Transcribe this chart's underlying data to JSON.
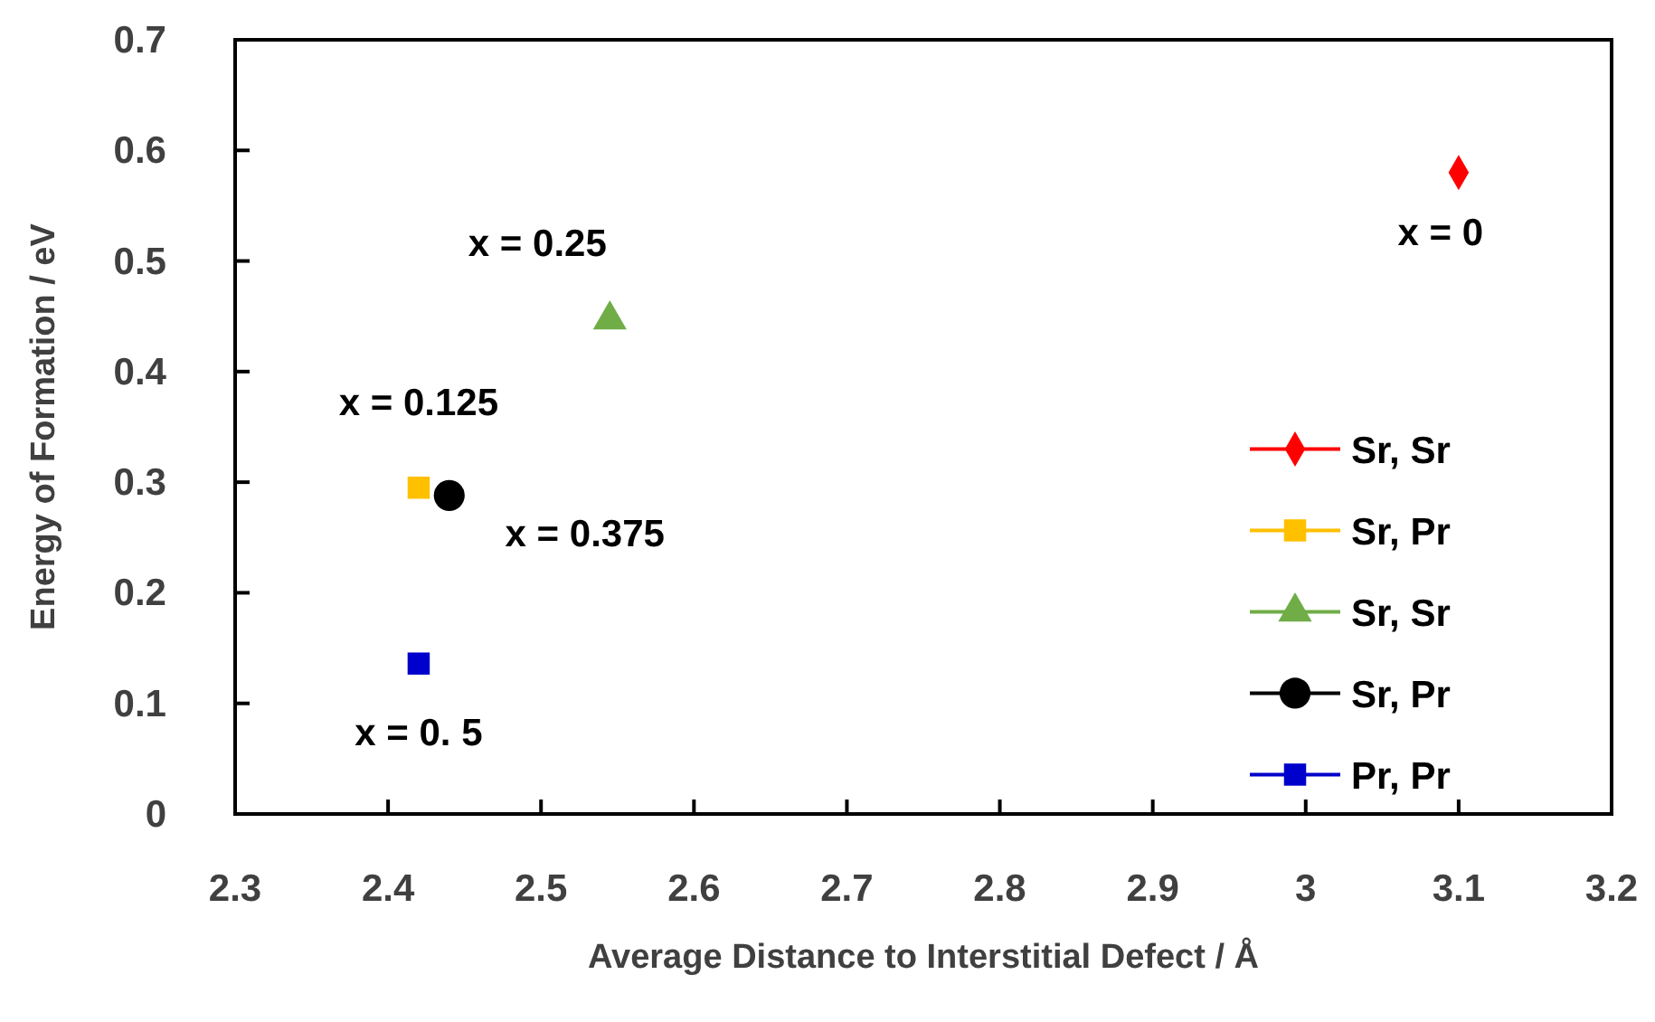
{
  "chart_data": {
    "type": "scatter",
    "xlabel": "Average Distance to Interstitial Defect / Å",
    "ylabel": "Energy of Formation / eV",
    "xlim": [
      2.3,
      3.2
    ],
    "xticks": [
      2.3,
      2.4,
      2.5,
      2.6,
      2.7,
      2.8,
      2.9,
      3,
      3.1,
      3.2
    ],
    "ylim": [
      0,
      0.7
    ],
    "yticks": [
      0,
      0.1,
      0.2,
      0.3,
      0.4,
      0.5,
      0.6,
      0.7
    ],
    "grid": false,
    "legend": "right",
    "series": [
      {
        "name": "Sr, Sr",
        "color": "#ff0000",
        "marker": "diamond",
        "x": [
          3.1
        ],
        "values": [
          0.58
        ]
      },
      {
        "name": "Sr, Pr",
        "color": "#ffc000",
        "marker": "square",
        "x": [
          2.42
        ],
        "values": [
          0.295
        ]
      },
      {
        "name": "Sr, Sr",
        "color": "#70ad47",
        "marker": "triangle",
        "x": [
          2.545
        ],
        "values": [
          0.447
        ]
      },
      {
        "name": "Sr, Pr",
        "color": "#000000",
        "marker": "circle",
        "x": [
          2.44
        ],
        "values": [
          0.288
        ]
      },
      {
        "name": "Pr, Pr",
        "color": "#0000cc",
        "marker": "square",
        "x": [
          2.42
        ],
        "values": [
          0.136
        ]
      }
    ],
    "annotations": [
      {
        "text": "x = 0",
        "x": 3.1,
        "y": 0.58
      },
      {
        "text": "x = 0.125",
        "x": 2.42,
        "y": 0.295
      },
      {
        "text": "x = 0.25",
        "x": 2.545,
        "y": 0.447
      },
      {
        "text": "x = 0.375",
        "x": 2.44,
        "y": 0.288
      },
      {
        "text": "x = 0. 5",
        "x": 2.42,
        "y": 0.136
      }
    ]
  }
}
